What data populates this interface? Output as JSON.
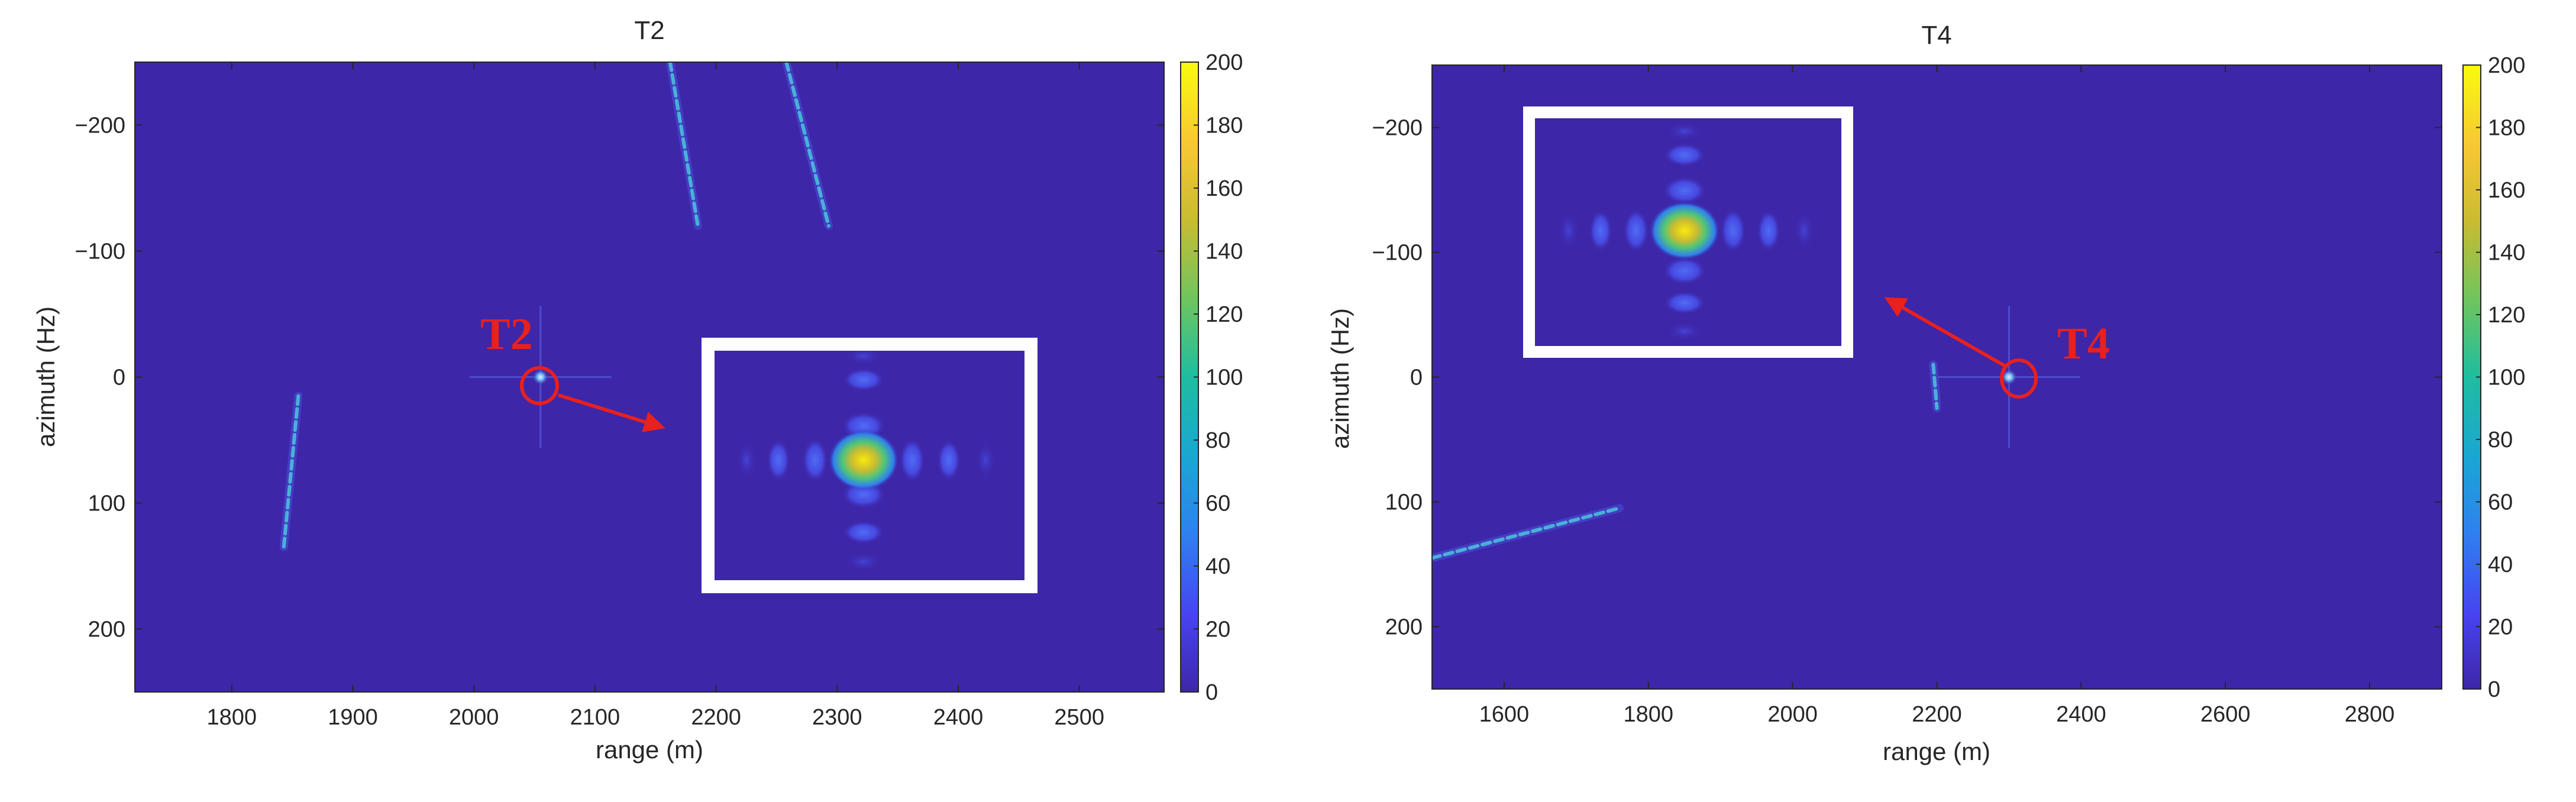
{
  "chart_data": [
    {
      "type": "heatmap",
      "title": "T2",
      "xlabel": "range (m)",
      "ylabel": "azimuth (Hz)",
      "xlim": [
        1720,
        2570
      ],
      "ylim": [
        -250,
        250
      ],
      "y_reversed": true,
      "x_ticks": [
        1800,
        1900,
        2000,
        2100,
        2200,
        2300,
        2400,
        2500
      ],
      "y_ticks": [
        -200,
        -100,
        0,
        100,
        200
      ],
      "colorbar": {
        "min": 0,
        "max": 200,
        "ticks": [
          0,
          20,
          40,
          60,
          80,
          100,
          120,
          140,
          160,
          180,
          200
        ]
      },
      "target": {
        "label": "T2",
        "range": 2055,
        "azimuth": 0
      },
      "streaks": [
        {
          "from": [
            1855,
            15
          ],
          "to": [
            1843,
            135
          ]
        },
        {
          "from": [
            2162,
            -250
          ],
          "to": [
            2185,
            -120
          ]
        },
        {
          "from": [
            2258,
            -250
          ],
          "to": [
            2293,
            -120
          ]
        }
      ]
    },
    {
      "type": "heatmap",
      "title": "T4",
      "xlabel": "range (m)",
      "ylabel": "azimuth (Hz)",
      "xlim": [
        1500,
        2900
      ],
      "ylim": [
        -250,
        250
      ],
      "y_reversed": true,
      "x_ticks": [
        1600,
        1800,
        2000,
        2200,
        2400,
        2600,
        2800
      ],
      "y_ticks": [
        -200,
        -100,
        0,
        100,
        200
      ],
      "colorbar": {
        "min": 0,
        "max": 200,
        "ticks": [
          0,
          20,
          40,
          60,
          80,
          100,
          120,
          140,
          160,
          180,
          200
        ]
      },
      "target": {
        "label": "T4",
        "range": 2300,
        "azimuth": 0
      },
      "streaks": [
        {
          "from": [
            1500,
            145
          ],
          "to": [
            1760,
            105
          ]
        },
        {
          "from": [
            2195,
            -10
          ],
          "to": [
            2200,
            25
          ]
        }
      ]
    }
  ],
  "colors": {
    "background": "#3d26a8",
    "colormap": [
      "#3e26a8",
      "#4743f0",
      "#2f80ef",
      "#1aa6d4",
      "#1ebda0",
      "#6cc560",
      "#c9bc31",
      "#f8c734",
      "#f9fb0e"
    ],
    "marker": "#e8201e",
    "inset_frame": "#ffffff"
  }
}
